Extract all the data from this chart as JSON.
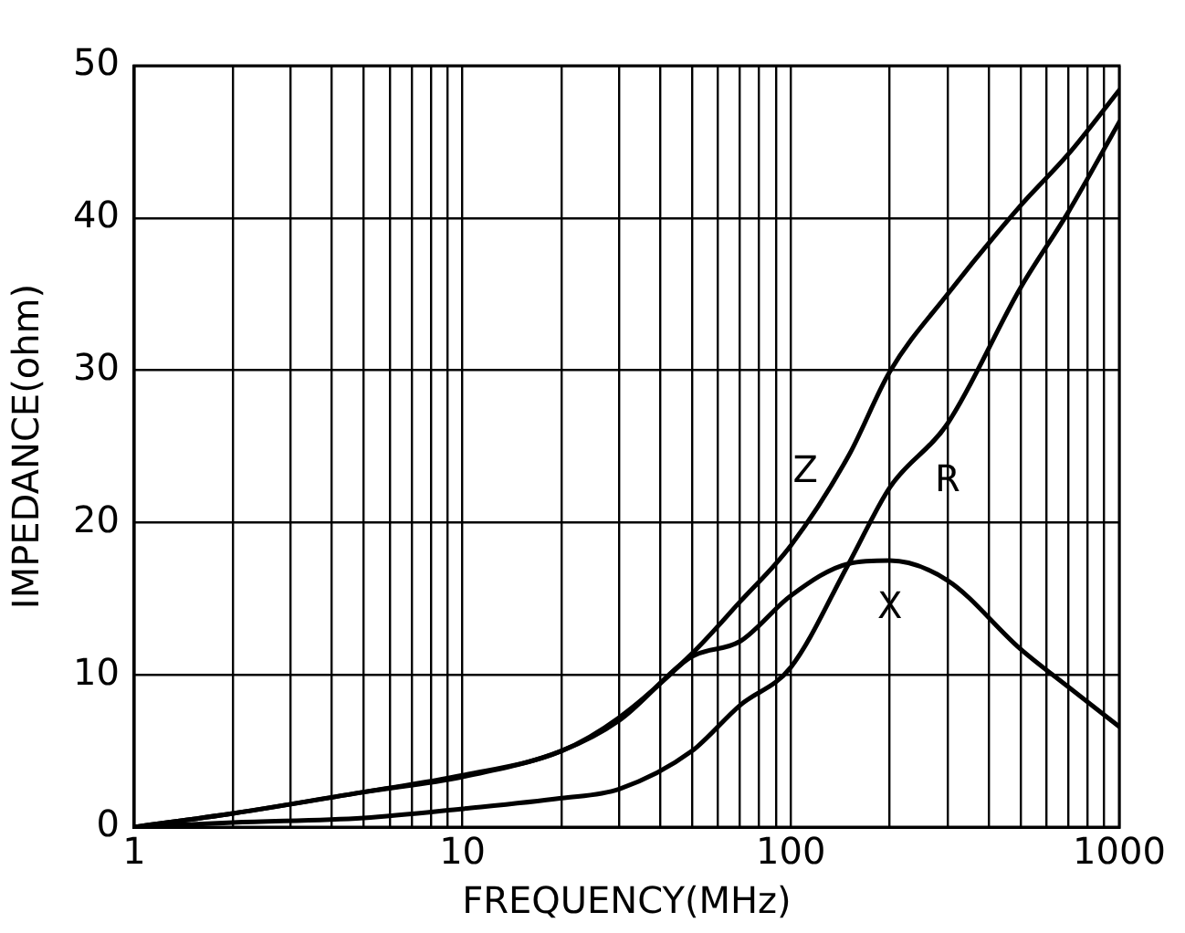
{
  "chart_data": {
    "type": "line",
    "xlabel": "FREQUENCY(MHz)",
    "ylabel": "IMPEDANCE(ohm)",
    "log": "x",
    "x": [
      1,
      2,
      5,
      10,
      20,
      30,
      50,
      70,
      100,
      150,
      200,
      300,
      500,
      700,
      1000
    ],
    "series": [
      {
        "name": "Z",
        "color": "#000000",
        "values": [
          0,
          0.9,
          2.3,
          3.4,
          5,
          7.2,
          11.4,
          14.8,
          18.5,
          24.4,
          29.9,
          35,
          40.8,
          44.2,
          48.4
        ]
      },
      {
        "name": "R",
        "color": "#000000",
        "values": [
          0,
          0.3,
          0.6,
          1.2,
          1.9,
          2.5,
          5,
          8,
          10.5,
          17.3,
          22.3,
          26.5,
          35.4,
          40.4,
          46.3
        ]
      },
      {
        "name": "X",
        "color": "#000000",
        "values": [
          0,
          0.9,
          2.3,
          3.3,
          5,
          7,
          11.2,
          12.2,
          15.2,
          17.3,
          17.5,
          16.2,
          11.7,
          9.2,
          6.6
        ]
      }
    ],
    "xlim": [
      1,
      1000
    ],
    "ylim": [
      0,
      50
    ],
    "xticks": [
      1,
      {
        "value": 2,
        "label": null
      },
      {
        "value": 3,
        "label": null
      },
      {
        "value": 4,
        "label": null
      },
      {
        "value": 5,
        "label": null
      },
      {
        "value": 6,
        "label": null
      },
      {
        "value": 7,
        "label": null
      },
      {
        "value": 8,
        "label": null
      },
      {
        "value": 9,
        "label": null
      },
      10,
      {
        "value": 20,
        "label": null
      },
      {
        "value": 30,
        "label": null
      },
      {
        "value": 40,
        "label": null
      },
      {
        "value": 50,
        "label": null
      },
      {
        "value": 60,
        "label": null
      },
      {
        "value": 70,
        "label": null
      },
      {
        "value": 80,
        "label": null
      },
      {
        "value": 90,
        "label": null
      },
      100,
      {
        "value": 200,
        "label": null
      },
      {
        "value": 300,
        "label": null
      },
      {
        "value": 400,
        "label": null
      },
      {
        "value": 500,
        "label": null
      },
      {
        "value": 600,
        "label": null
      },
      {
        "value": 700,
        "label": null
      },
      {
        "value": 800,
        "label": null
      },
      {
        "value": 900,
        "label": null
      },
      1000
    ],
    "yticks": [
      0,
      10,
      20,
      30,
      40,
      50
    ],
    "grid": true,
    "legend": false,
    "marker": "none",
    "line_style": "solid"
  }
}
